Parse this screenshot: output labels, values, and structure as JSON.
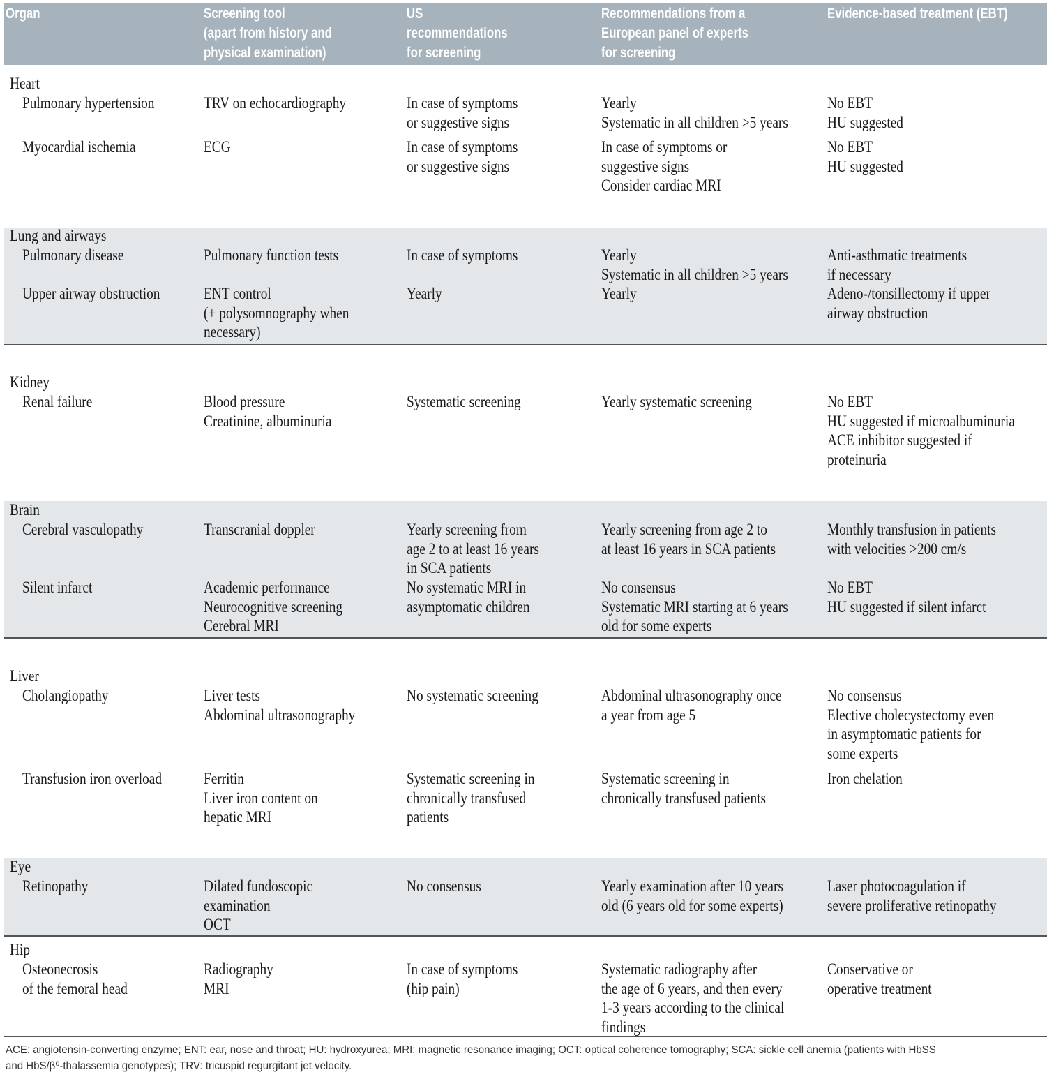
{
  "table": {
    "header": [
      [
        "Organ"
      ],
      [
        "Screening tool",
        "(apart from history and",
        "physical examination)"
      ],
      [
        "US",
        "recommendations",
        "for screening"
      ],
      [
        "Recommendations from a",
        "European panel of experts",
        "for screening"
      ],
      [
        "Evidence-based treatment (EBT)"
      ]
    ],
    "sections": [
      {
        "organ": "Heart",
        "rows": [
          [
            [
              "Pulmonary hypertension"
            ],
            [
              "TRV on echocardiography"
            ],
            [
              "In case of symptoms",
              "or suggestive signs"
            ],
            [
              "Yearly",
              "Systematic in all children >5 years"
            ],
            [
              "No EBT",
              "HU suggested"
            ]
          ],
          [
            [
              "Myocardial ischemia"
            ],
            [
              "ECG"
            ],
            [
              "In case of symptoms",
              "or suggestive signs"
            ],
            [
              "In case of symptoms or",
              "suggestive signs",
              "Consider cardiac MRI"
            ],
            [
              "No EBT",
              "HU suggested"
            ]
          ]
        ]
      },
      {
        "organ": "Lung and airways",
        "rows": [
          [
            [
              "Pulmonary disease"
            ],
            [
              "Pulmonary function tests"
            ],
            [
              "In case of symptoms"
            ],
            [
              "Yearly",
              "Systematic in all children >5 years"
            ],
            [
              "Anti-asthmatic treatments",
              "if necessary"
            ]
          ],
          [
            [
              "Upper airway obstruction"
            ],
            [
              "ENT control",
              "(+ polysomnography when",
              "necessary)"
            ],
            [
              "Yearly"
            ],
            [
              "Yearly"
            ],
            [
              "Adeno-/tonsillectomy if upper",
              "airway obstruction"
            ]
          ]
        ]
      },
      {
        "organ": "Kidney",
        "rows": [
          [
            [
              "Renal failure"
            ],
            [
              "Blood pressure",
              "Creatinine, albuminuria"
            ],
            [
              "Systematic screening"
            ],
            [
              "Yearly systematic screening"
            ],
            [
              "No EBT",
              "HU suggested if microalbuminuria",
              "ACE inhibitor suggested if",
              "proteinuria"
            ]
          ]
        ]
      },
      {
        "organ": "Brain",
        "rows": [
          [
            [
              "Cerebral vasculopathy"
            ],
            [
              "Transcranial doppler"
            ],
            [
              "Yearly screening from",
              "age 2 to at least 16 years",
              "in SCA patients"
            ],
            [
              "Yearly screening from age 2 to",
              "at least 16 years in SCA patients"
            ],
            [
              "Monthly transfusion in patients",
              "with velocities >200 cm/s"
            ]
          ],
          [
            [
              "Silent infarct"
            ],
            [
              "Academic performance",
              "Neurocognitive screening",
              "Cerebral MRI"
            ],
            [
              "No systematic MRI in",
              "asymptomatic children"
            ],
            [
              "No consensus",
              "Systematic MRI starting at 6 years",
              "old for some experts"
            ],
            [
              "No EBT",
              "HU suggested if silent infarct"
            ]
          ]
        ]
      },
      {
        "organ": "Liver",
        "rows": [
          [
            [
              "Cholangiopathy"
            ],
            [
              "Liver tests",
              "Abdominal ultrasonography"
            ],
            [
              "No systematic screening"
            ],
            [
              "Abdominal ultrasonography once",
              "a year from age 5"
            ],
            [
              "No consensus",
              "Elective cholecystectomy even",
              "in asymptomatic patients for",
              "some experts"
            ]
          ],
          [
            [
              "Transfusion iron overload"
            ],
            [
              "Ferritin",
              "Liver iron content on",
              "hepatic MRI"
            ],
            [
              "Systematic screening in",
              "chronically transfused",
              "patients"
            ],
            [
              "Systematic screening in",
              "chronically transfused patients"
            ],
            [
              "Iron chelation"
            ]
          ]
        ]
      },
      {
        "organ": "Eye",
        "rows": [
          [
            [
              "Retinopathy"
            ],
            [
              "Dilated fundoscopic",
              "examination",
              "OCT"
            ],
            [
              "No consensus"
            ],
            [
              "Yearly examination after 10 years",
              "old (6 years old for some experts)"
            ],
            [
              "Laser photocoagulation if",
              "severe proliferative retinopathy"
            ]
          ]
        ]
      },
      {
        "organ": "Hip",
        "rows": [
          [
            [
              "Osteonecrosis",
              "of the femoral head"
            ],
            [
              "Radiography",
              "MRI"
            ],
            [
              "In case of symptoms",
              "(hip pain)"
            ],
            [
              "Systematic radiography after",
              "the age of 6 years, and then every",
              "1-3 years according to the clinical",
              "findings"
            ],
            [
              "Conservative or",
              "operative treatment"
            ]
          ]
        ]
      }
    ]
  },
  "footnote": [
    "ACE: angiotensin-converting enzyme; ENT: ear, nose and throat; HU: hydroxyurea; MRI: magnetic resonance imaging; OCT: optical coherence tomography; SCA: sickle cell anemia (patients with HbSS",
    "and HbS/β⁰-thalassemia genotypes); TRV: tricuspid regurgitant jet velocity."
  ]
}
